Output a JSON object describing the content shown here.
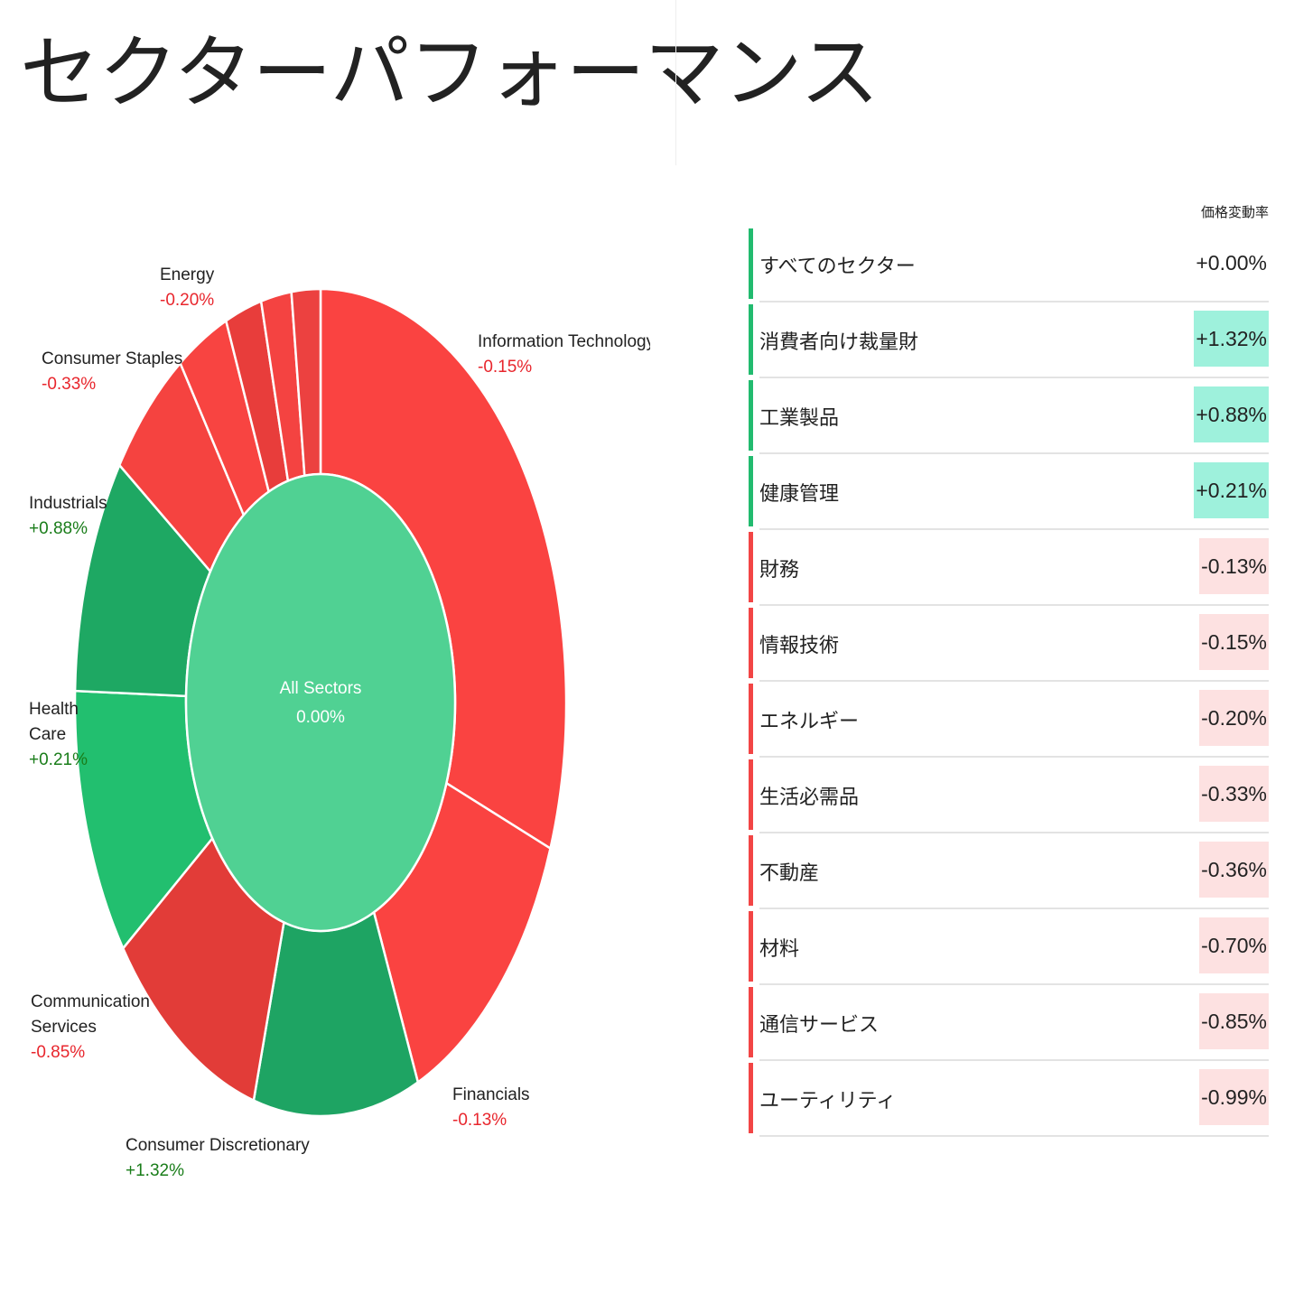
{
  "title": "セクターパフォーマンス",
  "table": {
    "header": "価格変動率",
    "rows": [
      {
        "name": "すべてのセクター",
        "value": "+0.00%",
        "trend": "up",
        "highlight": false
      },
      {
        "name": "消費者向け裁量財",
        "value": "+1.32%",
        "trend": "up",
        "highlight": true
      },
      {
        "name": "工業製品",
        "value": "+0.88%",
        "trend": "up",
        "highlight": true
      },
      {
        "name": "健康管理",
        "value": "+0.21%",
        "trend": "up",
        "highlight": true
      },
      {
        "name": "財務",
        "value": "-0.13%",
        "trend": "down",
        "highlight": true
      },
      {
        "name": "情報技術",
        "value": "-0.15%",
        "trend": "down",
        "highlight": true
      },
      {
        "name": "エネルギー",
        "value": "-0.20%",
        "trend": "down",
        "highlight": true
      },
      {
        "name": "生活必需品",
        "value": "-0.33%",
        "trend": "down",
        "highlight": true
      },
      {
        "name": "不動産",
        "value": "-0.36%",
        "trend": "down",
        "highlight": true
      },
      {
        "name": "材料",
        "value": "-0.70%",
        "trend": "down",
        "highlight": true
      },
      {
        "name": "通信サービス",
        "value": "-0.85%",
        "trend": "down",
        "highlight": true
      },
      {
        "name": "ユーティリティ",
        "value": "-0.99%",
        "trend": "down",
        "highlight": true
      }
    ]
  },
  "colors": {
    "up_bar": "#22bb6f",
    "down_bar": "#f24545",
    "up_bg": "#9ef1dc",
    "down_bg": "#fde1e1",
    "up_text": "#1a7d1a",
    "down_text": "#e8262d",
    "center": "#50d193"
  },
  "chart_data": {
    "type": "sunburst",
    "center": {
      "label": "All Sectors",
      "value": "0.00%"
    },
    "series": [
      {
        "name": "Information Technology",
        "share": 30.8,
        "change": -0.15,
        "label": "-0.15%",
        "color": "#fa4341"
      },
      {
        "name": "Financials",
        "share": 12.8,
        "change": -0.13,
        "label": "-0.13%",
        "color": "#fa4341"
      },
      {
        "name": "Consumer Discretionary",
        "share": 10.9,
        "change": 1.32,
        "label": "+1.32%",
        "color": "#1ea463"
      },
      {
        "name": "Communication Services",
        "share": 10.5,
        "change": -0.85,
        "label": "-0.85%",
        "color": "#e23c38"
      },
      {
        "name": "Health Care",
        "share": 10.6,
        "change": 0.21,
        "label": "+0.21%",
        "color": "#22bf6f"
      },
      {
        "name": "Industrials",
        "share": 9.3,
        "change": 0.88,
        "label": "+0.88%",
        "color": "#1ea863"
      },
      {
        "name": "Consumer Staples",
        "share": 5.6,
        "change": -0.33,
        "label": "-0.33%",
        "color": "#f54340"
      },
      {
        "name": "Energy",
        "share": 3.4,
        "change": -0.2,
        "label": "-0.20%",
        "color": "#f84441"
      },
      {
        "name": "",
        "share": 2.4,
        "change": -0.7,
        "label": "",
        "color": "#e83d3b"
      },
      {
        "name": "",
        "share": 2.0,
        "change": -0.99,
        "label": "",
        "color": "#f44341"
      },
      {
        "name": "",
        "share": 1.9,
        "change": -0.36,
        "label": "",
        "color": "#ec4140"
      }
    ]
  }
}
